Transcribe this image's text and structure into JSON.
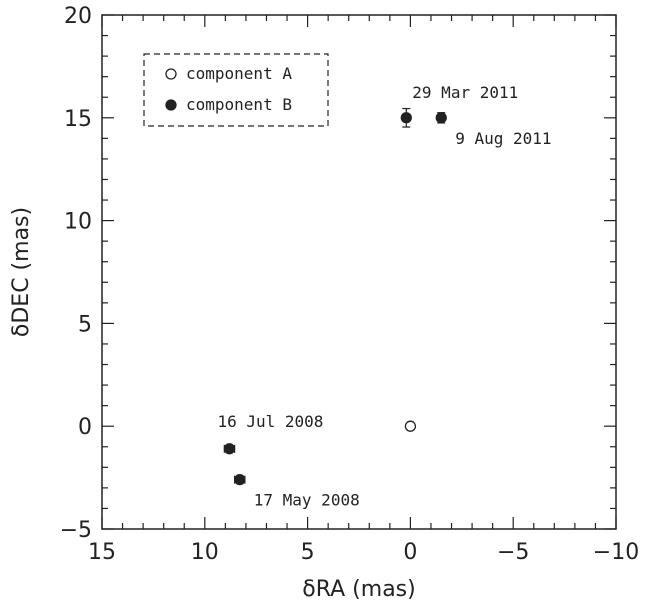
{
  "chart_data": {
    "type": "scatter",
    "xlabel": "δRA (mas)",
    "ylabel": "δDEC (mas)",
    "xlim": [
      15,
      -10
    ],
    "ylim": [
      -5,
      20
    ],
    "x_ticks": [
      "15",
      "10",
      "5",
      "0",
      "−5",
      "−10"
    ],
    "x_tick_values": [
      15,
      10,
      5,
      0,
      -5,
      -10
    ],
    "y_ticks": [
      "−5",
      "0",
      "5",
      "10",
      "15",
      "20"
    ],
    "y_tick_values": [
      -5,
      0,
      5,
      10,
      15,
      20
    ],
    "grid": false,
    "legend": {
      "placement": "top-left",
      "entries": [
        {
          "label": "component A",
          "marker": "open-circle"
        },
        {
          "label": "component B",
          "marker": "filled-circle"
        }
      ]
    },
    "series": [
      {
        "name": "component A",
        "marker": "open-circle",
        "points": [
          {
            "x": 0,
            "y": 0
          }
        ]
      },
      {
        "name": "component B",
        "marker": "filled-circle",
        "points": [
          {
            "x": 8.8,
            "y": -1.1,
            "xerr": 0.25,
            "yerr": 0,
            "label": "16 Jul 2008"
          },
          {
            "x": 8.3,
            "y": -2.6,
            "xerr": 0.25,
            "yerr": 0,
            "label": "17 May 2008"
          },
          {
            "x": 0.2,
            "y": 15.0,
            "xerr": 0,
            "yerr": 0.45,
            "label": "29 Mar 2011"
          },
          {
            "x": -1.5,
            "y": 15.0,
            "xerr": 0,
            "yerr": 0.25,
            "label": "9 Aug 2011"
          }
        ]
      }
    ],
    "annotations": [
      {
        "text": "16 Jul 2008",
        "x": 8.8,
        "y": -1.1,
        "position": "above"
      },
      {
        "text": "17 May 2008",
        "x": 8.3,
        "y": -2.6,
        "position": "below-right"
      },
      {
        "text": "29 Mar 2011",
        "x": 0.2,
        "y": 15.0,
        "position": "above-right"
      },
      {
        "text": "9 Aug 2011",
        "x": -1.5,
        "y": 15.0,
        "position": "below-right"
      }
    ]
  }
}
